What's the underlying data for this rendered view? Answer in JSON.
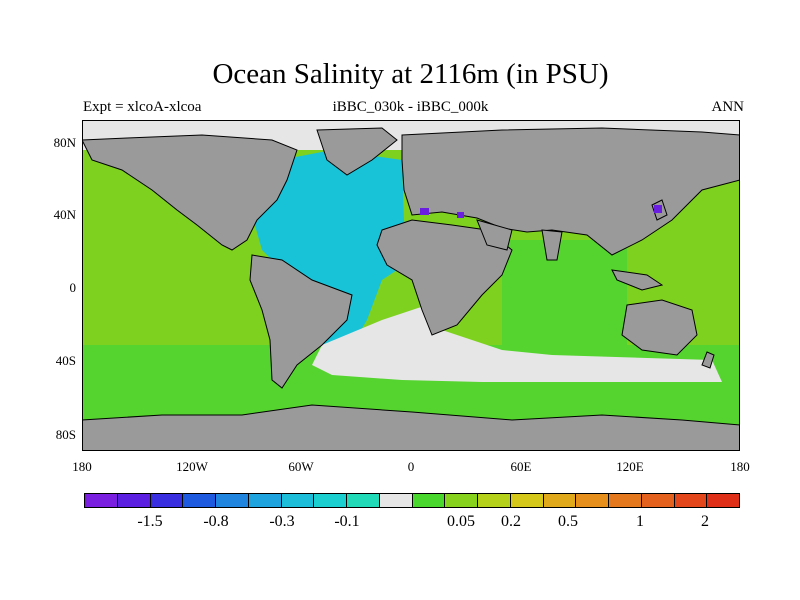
{
  "title": "Ocean Salinity at 2116m (in PSU)",
  "subtitle_left": "Expt = xlcoA-xlcoa",
  "subtitle_center": "iBBC_030k - iBBC_000k",
  "subtitle_right": "ANN",
  "lat_labels": [
    "80N",
    "40N",
    "0",
    "40S",
    "80S"
  ],
  "lon_labels": [
    "180",
    "120W",
    "60W",
    "0",
    "60E",
    "120E",
    "180"
  ],
  "colorbar": {
    "colors": [
      "#7a1fe0",
      "#5a1fe0",
      "#3a2fe0",
      "#1e5adf",
      "#1f85df",
      "#1fa3de",
      "#1cbdd9",
      "#1bcfd0",
      "#21dab7",
      "#e6e6e6",
      "#49d62d",
      "#86d21d",
      "#b5d119",
      "#d6c81a",
      "#e0a81b",
      "#e68f1c",
      "#e4781d",
      "#e4601d",
      "#e2461a",
      "#e02f18"
    ],
    "labels": [
      "-1.5",
      "-0.8",
      "-0.3",
      "-0.1",
      "0.05",
      "0.2",
      "0.5",
      "1",
      "2"
    ]
  },
  "colors": {
    "land": "#9a9a9a",
    "pacific_indian_positive": "#7fd11f",
    "southern_positive": "#55d42f",
    "atlantic_negative": "#18c3d8",
    "near_zero": "#e6e6e6",
    "strong_negative": "#6a1fe0"
  }
}
